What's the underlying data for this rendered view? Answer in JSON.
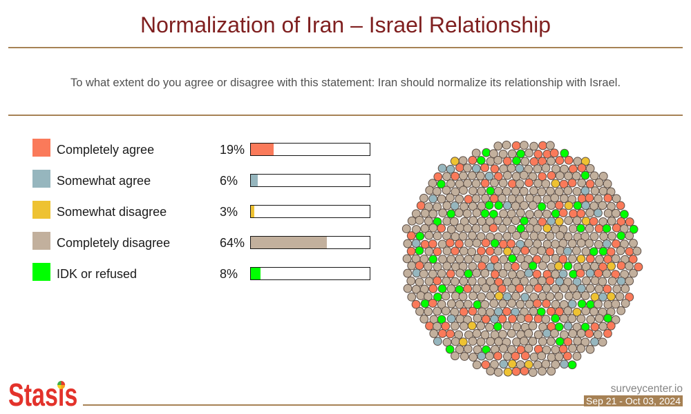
{
  "theme": {
    "title_color": "#7F1F1F",
    "rule_color": "#A68154",
    "logo_color": "#E3322B",
    "question_color": "#505050",
    "dot_outline": "#5B4D45"
  },
  "chart_data": {
    "type": "bar",
    "orientation": "horizontal",
    "title": "Normalization of Iran – Israel Relationship",
    "subtitle": "To what extent do you agree or disagree with this statement: Iran should normalize its relationship with Israel.",
    "categories": [
      "Completely agree",
      "Somewhat agree",
      "Somewhat disagree",
      "Completely disagree",
      "IDK or refused"
    ],
    "values": [
      19,
      6,
      3,
      64,
      8
    ],
    "unit": "%",
    "colors": [
      "#FA7A5A",
      "#96B6BE",
      "#EEC232",
      "#C2B09D",
      "#00FF00"
    ],
    "xlim": [
      0,
      100
    ],
    "xlabel": "",
    "ylabel": "",
    "grid": false,
    "legend": "left"
  },
  "footer": {
    "logo": "Stasis",
    "site": "surveycenter.io",
    "dates": "Sep 21 - Oct 03, 2024"
  }
}
